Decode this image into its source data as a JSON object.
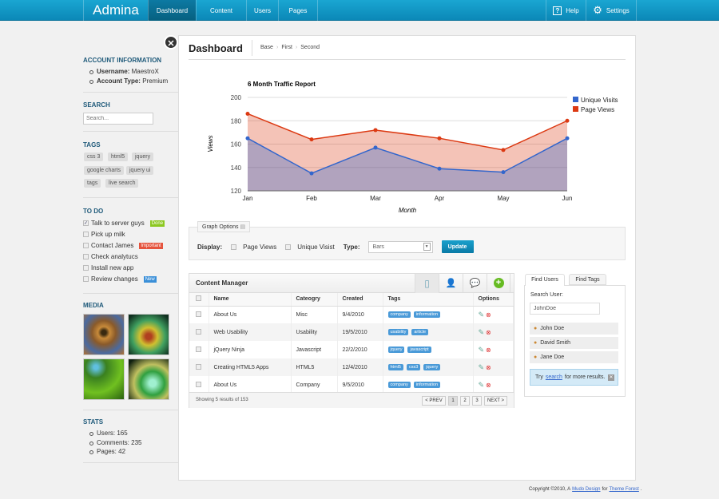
{
  "header": {
    "logo": "Admina",
    "nav": [
      "Dashboard",
      "Content",
      "Users",
      "Pages"
    ],
    "help": "Help",
    "settings": "Settings"
  },
  "sidebar": {
    "account": {
      "title": "ACCOUNT INFORMATION",
      "username_label": "Username:",
      "username": "MaestroX",
      "type_label": "Account Type:",
      "type": "Premium"
    },
    "search": {
      "title": "SEARCH",
      "placeholder": "Search..."
    },
    "tags": {
      "title": "TAGS",
      "items": [
        "css 3",
        "html5",
        "jquery",
        "google charts",
        "jquery ui",
        "tags",
        "live search"
      ]
    },
    "todo": {
      "title": "TO DO",
      "items": [
        {
          "label": "Talk to server guys",
          "checked": true,
          "badge": "Done",
          "badge_color": "#8cc820"
        },
        {
          "label": "Pick up milk"
        },
        {
          "label": "Contact James",
          "badge": "Important",
          "badge_color": "#e5533d"
        },
        {
          "label": "Check analytucs"
        },
        {
          "label": "Install new app"
        },
        {
          "label": "Review changes",
          "badge": "New",
          "badge_color": "#3a8fd8"
        }
      ]
    },
    "media": {
      "title": "MEDIA"
    },
    "stats": {
      "title": "STATS",
      "items": [
        "Users: 165",
        "Comments: 235",
        "Pages: 42"
      ]
    }
  },
  "page": {
    "title": "Dashboard",
    "breadcrumb": [
      "Base",
      "First",
      "Second"
    ]
  },
  "chart_data": {
    "type": "area",
    "title": "6 Month Traffic Report",
    "xlabel": "Month",
    "ylabel": "Views",
    "categories": [
      "Jan",
      "Feb",
      "Mar",
      "Apr",
      "May",
      "Jun"
    ],
    "ylim": [
      120,
      200
    ],
    "yticks": [
      120,
      140,
      160,
      180,
      200
    ],
    "grid": true,
    "legend": "right",
    "series": [
      {
        "name": "Unique Visits",
        "color": "#3366cc",
        "values": [
          165,
          135,
          157,
          139,
          136,
          165
        ]
      },
      {
        "name": "Page Views",
        "color": "#dc3912",
        "values": [
          186,
          164,
          172,
          165,
          155,
          180
        ]
      }
    ]
  },
  "graph_options": {
    "legend": "Graph Options",
    "display_label": "Display:",
    "page_views": "Page Views",
    "unique": "Unique Visist",
    "type_label": "Type:",
    "type_value": "Bars",
    "update": "Update"
  },
  "content_manager": {
    "title": "Content Manager",
    "columns": [
      "Name",
      "Cateogry",
      "Created",
      "Tags",
      "Options"
    ],
    "rows": [
      {
        "name": "About Us",
        "category": "Misc",
        "created": "9/4/2010",
        "tags": [
          "company",
          "information"
        ]
      },
      {
        "name": "Web Usability",
        "category": "Usability",
        "created": "19/5/2010",
        "tags": [
          "usability",
          "article"
        ]
      },
      {
        "name": "jQuery Ninja",
        "category": "Javascript",
        "created": "22/2/2010",
        "tags": [
          "jquery",
          "javascript"
        ]
      },
      {
        "name": "Creating HTML5 Apps",
        "category": "HTML5",
        "created": "12/4/2010",
        "tags": [
          "html5",
          "css3",
          "jquery"
        ]
      },
      {
        "name": "About Us",
        "category": "Company",
        "created": "9/5/2010",
        "tags": [
          "company",
          "information"
        ]
      }
    ],
    "footer": "Showing 5 results of 153",
    "pagination": [
      "< PREV",
      "1",
      "2",
      "3",
      "NEXT >"
    ]
  },
  "finder": {
    "tabs": [
      "Find Users",
      "Find Tags"
    ],
    "label": "Search User:",
    "value": "JohnDoe",
    "users": [
      "John Doe",
      "David Smith",
      "Jane Doe"
    ],
    "hint_pre": "Try",
    "hint_link": "search",
    "hint_post": "for more results."
  },
  "footer": {
    "pre": "Copyright ©2010, A",
    "link1": "Mudo Design",
    "mid": "for",
    "link2": "Theme Forest",
    "end": "."
  }
}
